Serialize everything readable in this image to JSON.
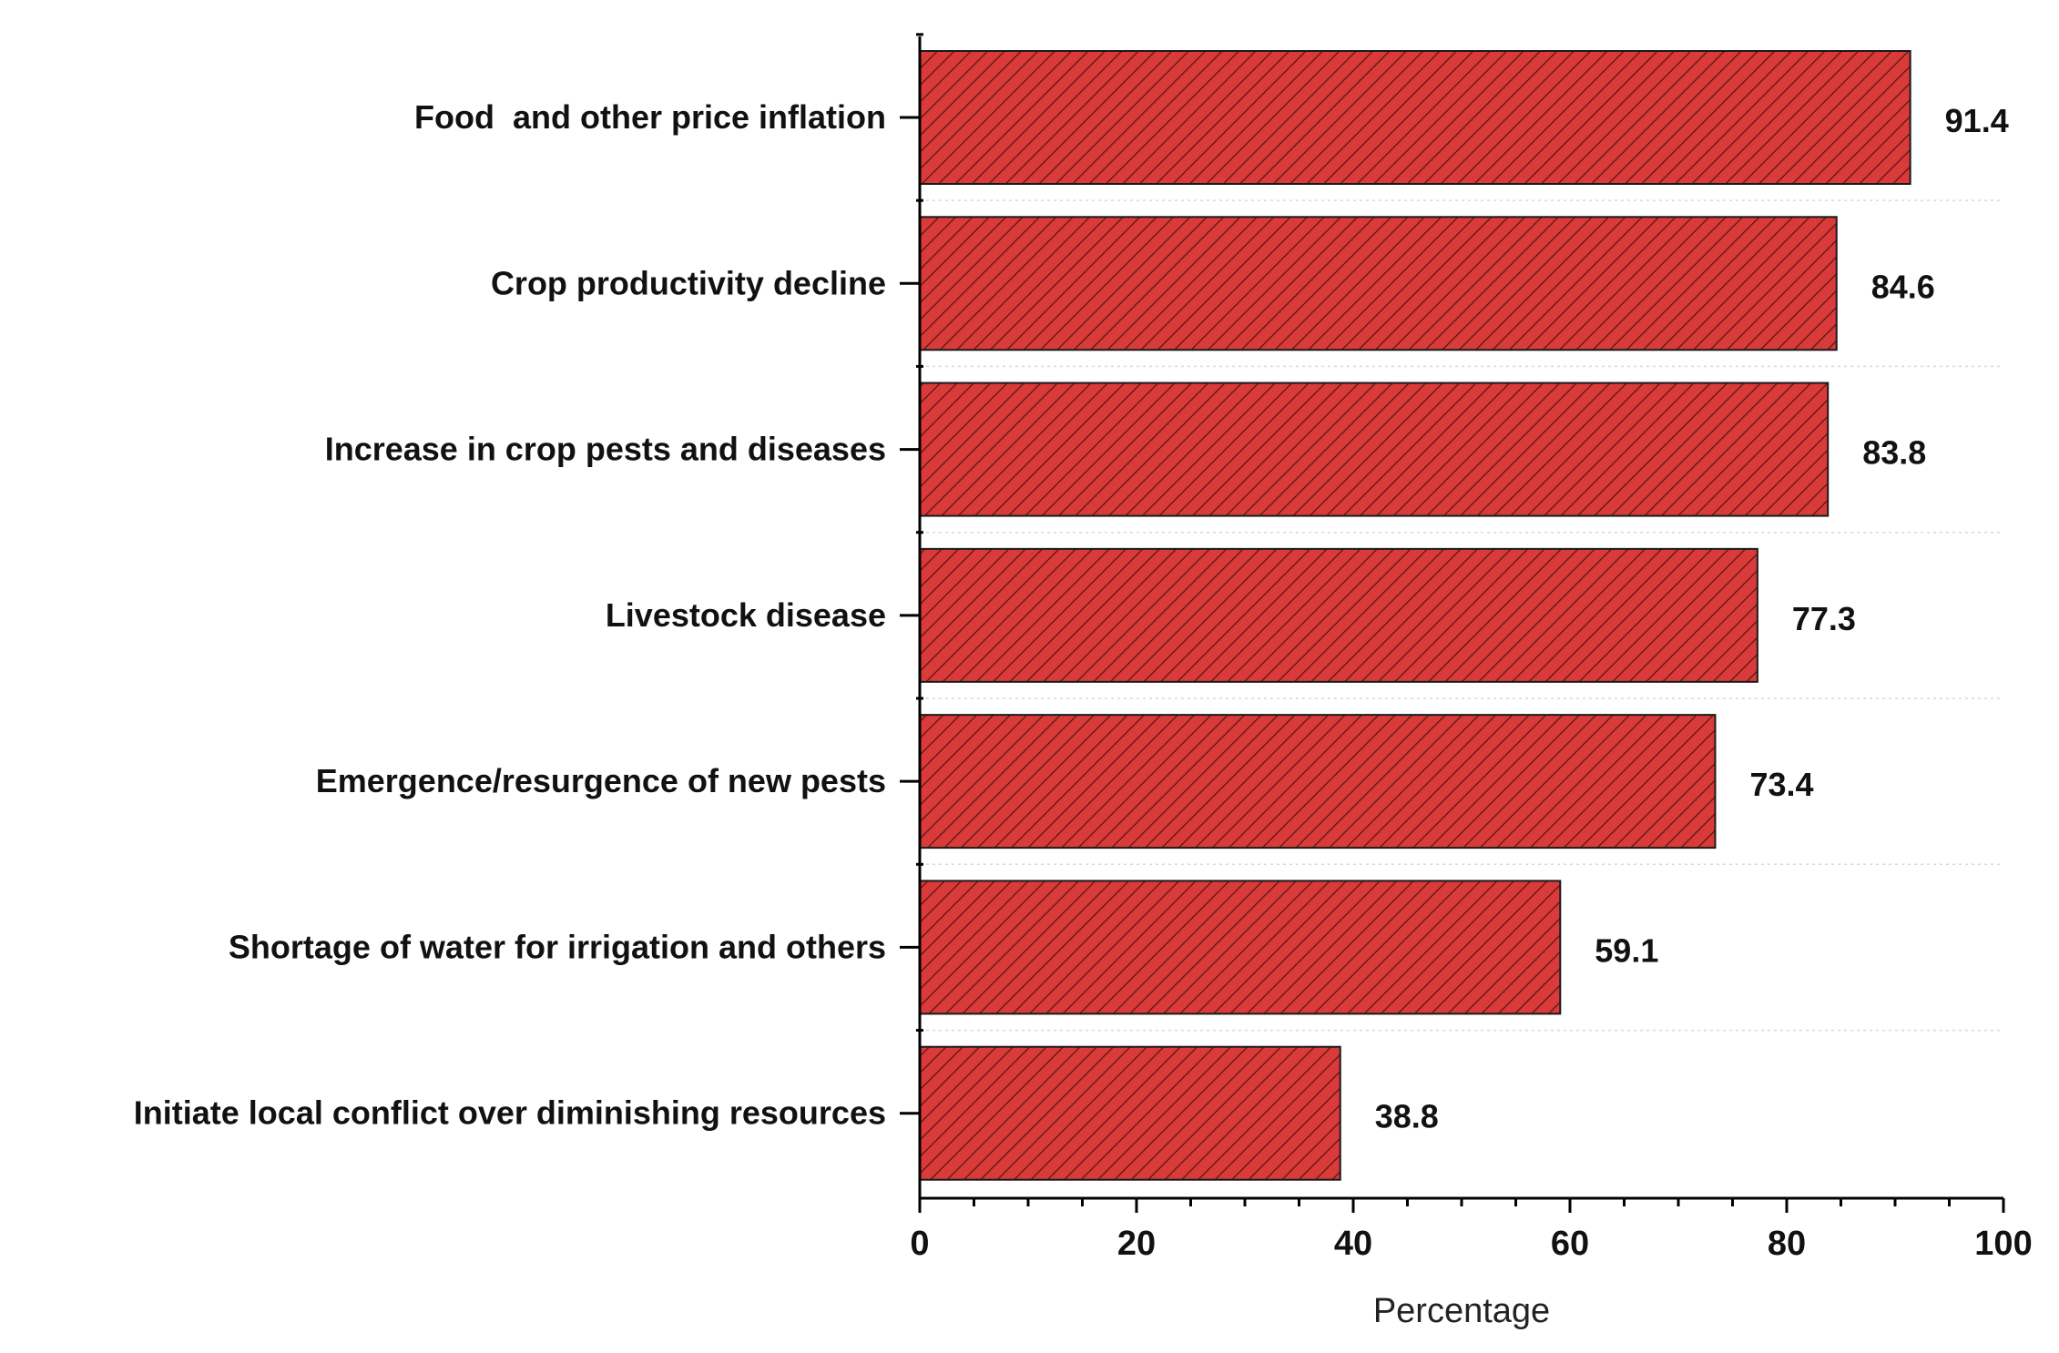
{
  "chart_data": {
    "type": "bar",
    "orientation": "horizontal",
    "categories": [
      "Food  and other price inflation",
      "Crop productivity decline",
      "Increase in crop pests and diseases",
      "Livestock disease",
      "Emergence/resurgence of new pests",
      "Shortage of water for irrigation and others",
      "Initiate local conflict over diminishing resources"
    ],
    "values": [
      91.4,
      84.6,
      83.8,
      77.3,
      73.4,
      59.1,
      38.8
    ],
    "value_labels": [
      "91.4",
      "84.6",
      "83.8",
      "77.3",
      "73.4",
      "59.1",
      "38.8"
    ],
    "xlabel": "Percentage",
    "ylabel": "",
    "xlim": [
      0,
      100
    ],
    "xticks": [
      0,
      20,
      40,
      60,
      80,
      100
    ],
    "xtick_labels": [
      "0",
      "20",
      "40",
      "60",
      "80",
      "100"
    ],
    "grid": true,
    "legend": "none",
    "bar_color": "#d93a3a",
    "hatch_color": "#5a1414"
  }
}
